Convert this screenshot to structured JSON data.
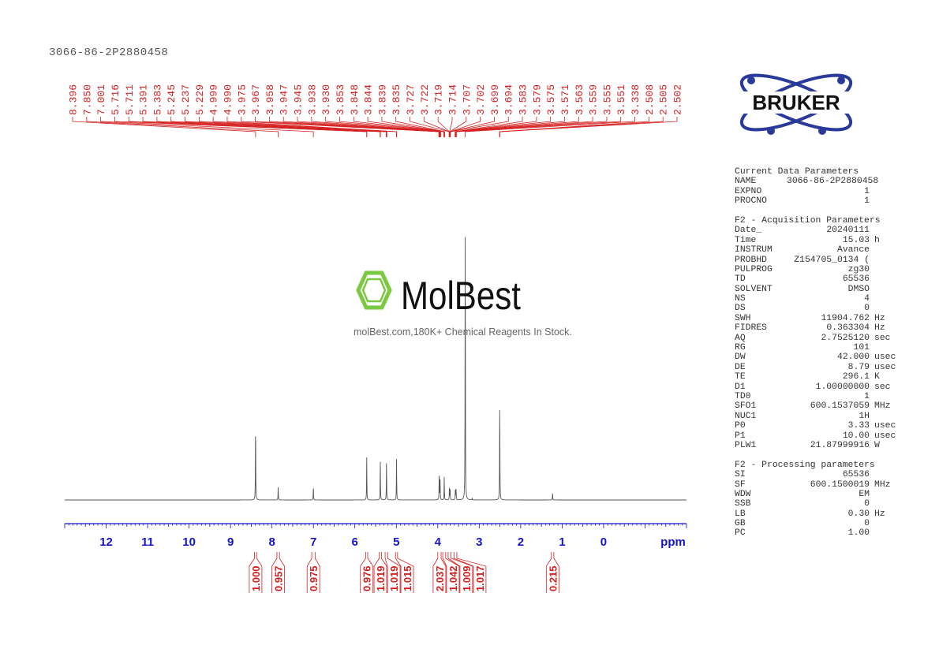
{
  "header": {
    "title": "3066-86-2P2880458"
  },
  "watermark": {
    "brand": "MolBest",
    "tagline": "molBest.com,180K+ Chemical Reagents In Stock."
  },
  "logo": {
    "text": "BRUKER"
  },
  "colors": {
    "spectrum": "#555555",
    "peak_labels": "#d42020",
    "axis": "#1414c8",
    "logo_blue": "#2a3a9a",
    "watermark_green": "#7ac943"
  },
  "chart_data": {
    "type": "line",
    "xlabel": "ppm",
    "xlim": [
      13.0,
      -2.0
    ],
    "x_ticks": [
      "12",
      "11",
      "10",
      "9",
      "8",
      "7",
      "6",
      "5",
      "4",
      "3",
      "2",
      "1",
      "0"
    ],
    "grid": false,
    "peak_list": [
      "8.396",
      "7.850",
      "7.001",
      "5.716",
      "5.711",
      "5.391",
      "5.383",
      "5.245",
      "5.237",
      "5.229",
      "4.999",
      "4.990",
      "3.975",
      "3.967",
      "3.958",
      "3.947",
      "3.945",
      "3.938",
      "3.930",
      "3.853",
      "3.848",
      "3.844",
      "3.839",
      "3.835",
      "3.727",
      "3.722",
      "3.719",
      "3.714",
      "3.707",
      "3.702",
      "3.699",
      "3.694",
      "3.583",
      "3.579",
      "3.575",
      "3.571",
      "3.563",
      "3.559",
      "3.555",
      "3.551",
      "3.338",
      "2.508",
      "2.505",
      "2.502"
    ],
    "spectrum_peaks": [
      {
        "ppm": 8.396,
        "rel_intensity": 27.5
      },
      {
        "ppm": 7.85,
        "rel_intensity": 4.5
      },
      {
        "ppm": 7.001,
        "rel_intensity": 4.8
      },
      {
        "ppm": 5.714,
        "rel_intensity": 14.3
      },
      {
        "ppm": 5.387,
        "rel_intensity": 14.0
      },
      {
        "ppm": 5.237,
        "rel_intensity": 13.5
      },
      {
        "ppm": 4.995,
        "rel_intensity": 14.0
      },
      {
        "ppm": 3.965,
        "rel_intensity": 10.0
      },
      {
        "ppm": 3.945,
        "rel_intensity": 7.0
      },
      {
        "ppm": 3.844,
        "rel_intensity": 7.7
      },
      {
        "ppm": 3.719,
        "rel_intensity": 4.2
      },
      {
        "ppm": 3.702,
        "rel_intensity": 3.5
      },
      {
        "ppm": 3.575,
        "rel_intensity": 4.2
      },
      {
        "ppm": 3.559,
        "rel_intensity": 3.5
      },
      {
        "ppm": 3.338,
        "rel_intensity": 100
      },
      {
        "ppm": 3.17,
        "rel_intensity": 0.6
      },
      {
        "ppm": 2.505,
        "rel_intensity": 35.4
      },
      {
        "ppm": 1.23,
        "rel_intensity": 2.4
      }
    ],
    "integrals": [
      {
        "range": [
          8.42,
          8.37
        ],
        "value": "1.000"
      },
      {
        "range": [
          7.88,
          7.82
        ],
        "value": "0.957"
      },
      {
        "range": [
          7.04,
          6.96
        ],
        "value": "0.975"
      },
      {
        "range": [
          5.74,
          5.69
        ],
        "value": "0.976"
      },
      {
        "range": [
          5.41,
          5.36
        ],
        "value": "1.019"
      },
      {
        "range": [
          5.27,
          5.21
        ],
        "value": "1.019"
      },
      {
        "range": [
          5.02,
          4.97
        ],
        "value": "1.015"
      },
      {
        "range": [
          4.0,
          3.92
        ],
        "value": "2.037"
      },
      {
        "range": [
          3.88,
          3.81
        ],
        "value": "1.042"
      },
      {
        "range": [
          3.75,
          3.68
        ],
        "value": "1.009"
      },
      {
        "range": [
          3.61,
          3.54
        ],
        "value": "1.017"
      },
      {
        "range": [
          1.26,
          1.2
        ],
        "value": "0.215"
      }
    ]
  },
  "parameters": {
    "current": {
      "heading": "Current Data Parameters",
      "rows": [
        [
          "NAME",
          "3066-86-2P2880458",
          ""
        ],
        [
          "EXPNO",
          "1",
          ""
        ],
        [
          "PROCNO",
          "1",
          ""
        ]
      ]
    },
    "acquisition": {
      "heading": "F2 - Acquisition Parameters",
      "rows": [
        [
          "Date_",
          "20240111",
          ""
        ],
        [
          "Time",
          "15.03",
          "h"
        ],
        [
          "INSTRUM",
          "Avance",
          ""
        ],
        [
          "PROBHD",
          "Z154705_0134 (",
          ""
        ],
        [
          "PULPROG",
          "zg30",
          ""
        ],
        [
          "TD",
          "65536",
          ""
        ],
        [
          "SOLVENT",
          "DMSO",
          ""
        ],
        [
          "NS",
          "4",
          ""
        ],
        [
          "DS",
          "0",
          ""
        ],
        [
          "SWH",
          "11904.762",
          "Hz"
        ],
        [
          "FIDRES",
          "0.363304",
          "Hz"
        ],
        [
          "AQ",
          "2.7525120",
          "sec"
        ],
        [
          "RG",
          "101",
          ""
        ],
        [
          "DW",
          "42.000",
          "usec"
        ],
        [
          "DE",
          "8.79",
          "usec"
        ],
        [
          "TE",
          "296.1",
          "K"
        ],
        [
          "D1",
          "1.00000000",
          "sec"
        ],
        [
          "TD0",
          "1",
          ""
        ],
        [
          "SFO1",
          "600.1537059",
          "MHz"
        ],
        [
          "NUC1",
          "1H",
          ""
        ],
        [
          "P0",
          "3.33",
          "usec"
        ],
        [
          "P1",
          "10.00",
          "usec"
        ],
        [
          "PLW1",
          "21.87999916",
          "W"
        ]
      ]
    },
    "processing": {
      "heading": "F2 - Processing parameters",
      "rows": [
        [
          "SI",
          "65536",
          ""
        ],
        [
          "SF",
          "600.1500019",
          "MHz"
        ],
        [
          "WDW",
          "EM",
          ""
        ],
        [
          "SSB",
          "0",
          ""
        ],
        [
          "LB",
          "0.30",
          "Hz"
        ],
        [
          "GB",
          "0",
          ""
        ],
        [
          "PC",
          "1.00",
          ""
        ]
      ]
    }
  }
}
